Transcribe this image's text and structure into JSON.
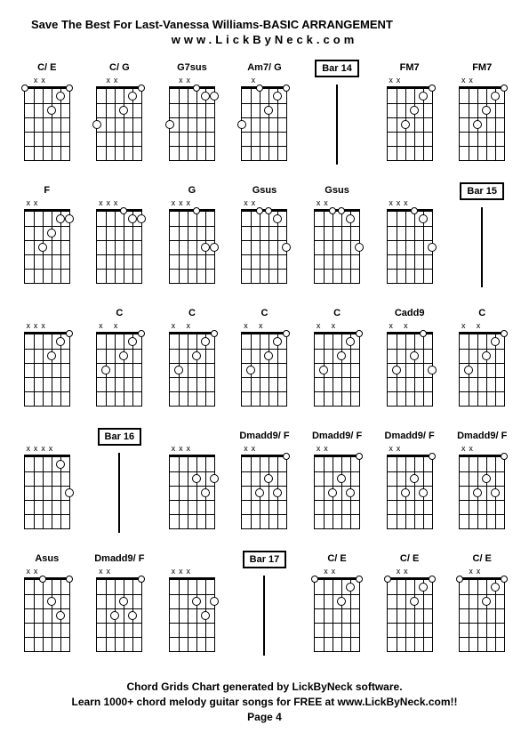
{
  "title": "Save The Best For Last-Vanessa Williams-BASIC ARRANGEMENT",
  "subtitle": "www.LickByNeck.com",
  "footer_line1": "Chord Grids Chart generated by LickByNeck software.",
  "footer_line2": "Learn 1000+ chord melody guitar songs for FREE at www.LickByNeck.com!!",
  "footer_page": "Page 4",
  "diagram": {
    "frets": 5,
    "strings": 6,
    "colors": {
      "line": "#000000",
      "bg": "#ffffff",
      "dot_fill": "#ffffff",
      "dot_stroke": "#000000"
    }
  },
  "cells": [
    {
      "type": "chord",
      "label": "C/ E",
      "mutes": [
        "",
        "x",
        "x",
        "",
        "",
        ""
      ],
      "dots": [
        [
          1,
          0
        ],
        [
          4,
          2
        ],
        [
          5,
          1
        ]
      ],
      "opens": [
        6
      ]
    },
    {
      "type": "chord",
      "label": "C/ G",
      "mutes": [
        "",
        "x",
        "x",
        "",
        "",
        ""
      ],
      "dots": [
        [
          1,
          3
        ],
        [
          4,
          2
        ],
        [
          5,
          1
        ]
      ],
      "opens": [
        6
      ]
    },
    {
      "type": "chord",
      "label": "G7sus",
      "mutes": [
        "",
        "x",
        "x",
        "",
        "",
        ""
      ],
      "dots": [
        [
          1,
          3
        ],
        [
          5,
          1
        ],
        [
          6,
          1
        ]
      ],
      "opens": [
        4
      ]
    },
    {
      "type": "chord",
      "label": "Am7/ G",
      "mutes": [
        "",
        "x",
        "",
        "",
        "",
        ""
      ],
      "dots": [
        [
          1,
          3
        ],
        [
          4,
          2
        ],
        [
          5,
          1
        ]
      ],
      "opens": [
        3,
        6
      ]
    },
    {
      "type": "bar",
      "label": "Bar 14"
    },
    {
      "type": "chord",
      "label": "FM7",
      "mutes": [
        "x",
        "x",
        "",
        "",
        "",
        ""
      ],
      "dots": [
        [
          3,
          3
        ],
        [
          4,
          2
        ],
        [
          5,
          1
        ]
      ],
      "opens": [
        6
      ]
    },
    {
      "type": "chord",
      "label": "FM7",
      "mutes": [
        "x",
        "x",
        "",
        "",
        "",
        ""
      ],
      "dots": [
        [
          3,
          3
        ],
        [
          4,
          2
        ],
        [
          5,
          1
        ]
      ],
      "opens": [
        6
      ]
    },
    {
      "type": "chord",
      "label": "F",
      "mutes": [
        "x",
        "x",
        "",
        "",
        "",
        ""
      ],
      "dots": [
        [
          3,
          3
        ],
        [
          4,
          2
        ],
        [
          5,
          1
        ],
        [
          6,
          1
        ]
      ],
      "opens": []
    },
    {
      "type": "chord",
      "label": "",
      "mutes": [
        "x",
        "x",
        "x",
        "",
        "",
        ""
      ],
      "dots": [
        [
          5,
          1
        ],
        [
          6,
          1
        ]
      ],
      "opens": [
        4
      ]
    },
    {
      "type": "chord",
      "label": "G",
      "mutes": [
        "x",
        "x",
        "x",
        "",
        "",
        ""
      ],
      "dots": [
        [
          5,
          3
        ],
        [
          6,
          3
        ]
      ],
      "opens": [
        4
      ]
    },
    {
      "type": "chord",
      "label": "Gsus",
      "mutes": [
        "x",
        "x",
        "",
        "",
        "",
        ""
      ],
      "dots": [
        [
          5,
          1
        ],
        [
          6,
          3
        ]
      ],
      "opens": [
        3,
        4
      ]
    },
    {
      "type": "chord",
      "label": "Gsus",
      "mutes": [
        "x",
        "x",
        "",
        "",
        "",
        ""
      ],
      "dots": [
        [
          5,
          1
        ],
        [
          6,
          3
        ]
      ],
      "opens": [
        3,
        4
      ]
    },
    {
      "type": "chord",
      "label": "",
      "mutes": [
        "x",
        "x",
        "x",
        "",
        "",
        ""
      ],
      "dots": [
        [
          5,
          1
        ],
        [
          6,
          3
        ]
      ],
      "opens": [
        4
      ]
    },
    {
      "type": "bar",
      "label": "Bar 15"
    },
    {
      "type": "chord",
      "label": "",
      "mutes": [
        "x",
        "x",
        "x",
        "",
        "",
        ""
      ],
      "dots": [
        [
          4,
          2
        ],
        [
          5,
          1
        ]
      ],
      "opens": [
        6
      ]
    },
    {
      "type": "chord",
      "label": "C",
      "mutes": [
        "x",
        "",
        "x",
        "",
        "",
        ""
      ],
      "dots": [
        [
          2,
          3
        ],
        [
          4,
          2
        ],
        [
          5,
          1
        ]
      ],
      "opens": [
        6
      ]
    },
    {
      "type": "chord",
      "label": "C",
      "mutes": [
        "x",
        "",
        "x",
        "",
        "",
        ""
      ],
      "dots": [
        [
          2,
          3
        ],
        [
          4,
          2
        ],
        [
          5,
          1
        ]
      ],
      "opens": [
        6
      ]
    },
    {
      "type": "chord",
      "label": "C",
      "mutes": [
        "x",
        "",
        "x",
        "",
        "",
        ""
      ],
      "dots": [
        [
          2,
          3
        ],
        [
          4,
          2
        ],
        [
          5,
          1
        ]
      ],
      "opens": [
        6
      ]
    },
    {
      "type": "chord",
      "label": "C",
      "mutes": [
        "x",
        "",
        "x",
        "",
        "",
        ""
      ],
      "dots": [
        [
          2,
          3
        ],
        [
          4,
          2
        ],
        [
          5,
          1
        ]
      ],
      "opens": [
        6
      ]
    },
    {
      "type": "chord",
      "label": "Cadd9",
      "mutes": [
        "x",
        "",
        "x",
        "",
        "",
        ""
      ],
      "dots": [
        [
          2,
          3
        ],
        [
          4,
          2
        ],
        [
          6,
          3
        ]
      ],
      "opens": [
        5
      ]
    },
    {
      "type": "chord",
      "label": "C",
      "mutes": [
        "x",
        "",
        "x",
        "",
        "",
        ""
      ],
      "dots": [
        [
          2,
          3
        ],
        [
          4,
          2
        ],
        [
          5,
          1
        ]
      ],
      "opens": [
        6
      ]
    },
    {
      "type": "chord",
      "label": "",
      "mutes": [
        "x",
        "x",
        "x",
        "x",
        "",
        ""
      ],
      "dots": [
        [
          5,
          1
        ],
        [
          6,
          3
        ]
      ],
      "opens": []
    },
    {
      "type": "bar",
      "label": "Bar 16"
    },
    {
      "type": "chord",
      "label": "",
      "mutes": [
        "x",
        "x",
        "x",
        "",
        "",
        ""
      ],
      "dots": [
        [
          4,
          2
        ],
        [
          5,
          3
        ],
        [
          6,
          2
        ]
      ],
      "opens": []
    },
    {
      "type": "chord",
      "label": "Dmadd9/ F",
      "mutes": [
        "x",
        "x",
        "",
        "",
        "",
        ""
      ],
      "dots": [
        [
          3,
          3
        ],
        [
          4,
          2
        ],
        [
          5,
          3
        ]
      ],
      "opens": [
        6
      ]
    },
    {
      "type": "chord",
      "label": "Dmadd9/ F",
      "mutes": [
        "x",
        "x",
        "",
        "",
        "",
        ""
      ],
      "dots": [
        [
          3,
          3
        ],
        [
          4,
          2
        ],
        [
          5,
          3
        ]
      ],
      "opens": [
        6
      ]
    },
    {
      "type": "chord",
      "label": "Dmadd9/ F",
      "mutes": [
        "x",
        "x",
        "",
        "",
        "",
        ""
      ],
      "dots": [
        [
          3,
          3
        ],
        [
          4,
          2
        ],
        [
          5,
          3
        ]
      ],
      "opens": [
        6
      ]
    },
    {
      "type": "chord",
      "label": "Dmadd9/ F",
      "mutes": [
        "x",
        "x",
        "",
        "",
        "",
        ""
      ],
      "dots": [
        [
          3,
          3
        ],
        [
          4,
          2
        ],
        [
          5,
          3
        ]
      ],
      "opens": [
        6
      ]
    },
    {
      "type": "chord",
      "label": "Asus",
      "mutes": [
        "x",
        "x",
        "",
        "",
        "",
        ""
      ],
      "dots": [
        [
          4,
          2
        ],
        [
          5,
          3
        ]
      ],
      "opens": [
        3,
        6
      ]
    },
    {
      "type": "chord",
      "label": "Dmadd9/ F",
      "mutes": [
        "x",
        "x",
        "",
        "",
        "",
        ""
      ],
      "dots": [
        [
          3,
          3
        ],
        [
          4,
          2
        ],
        [
          5,
          3
        ]
      ],
      "opens": [
        6
      ]
    },
    {
      "type": "chord",
      "label": "",
      "mutes": [
        "x",
        "x",
        "x",
        "",
        "",
        ""
      ],
      "dots": [
        [
          4,
          2
        ],
        [
          5,
          3
        ],
        [
          6,
          2
        ]
      ],
      "opens": []
    },
    {
      "type": "bar",
      "label": "Bar 17"
    },
    {
      "type": "chord",
      "label": "C/ E",
      "mutes": [
        "",
        "x",
        "x",
        "",
        "",
        ""
      ],
      "dots": [
        [
          1,
          0
        ],
        [
          4,
          2
        ],
        [
          5,
          1
        ]
      ],
      "opens": [
        6
      ]
    },
    {
      "type": "chord",
      "label": "C/ E",
      "mutes": [
        "",
        "x",
        "x",
        "",
        "",
        ""
      ],
      "dots": [
        [
          1,
          0
        ],
        [
          4,
          2
        ],
        [
          5,
          1
        ]
      ],
      "opens": [
        6
      ]
    },
    {
      "type": "chord",
      "label": "C/ E",
      "mutes": [
        "",
        "x",
        "x",
        "",
        "",
        ""
      ],
      "dots": [
        [
          1,
          0
        ],
        [
          4,
          2
        ],
        [
          5,
          1
        ]
      ],
      "opens": [
        6
      ]
    }
  ]
}
